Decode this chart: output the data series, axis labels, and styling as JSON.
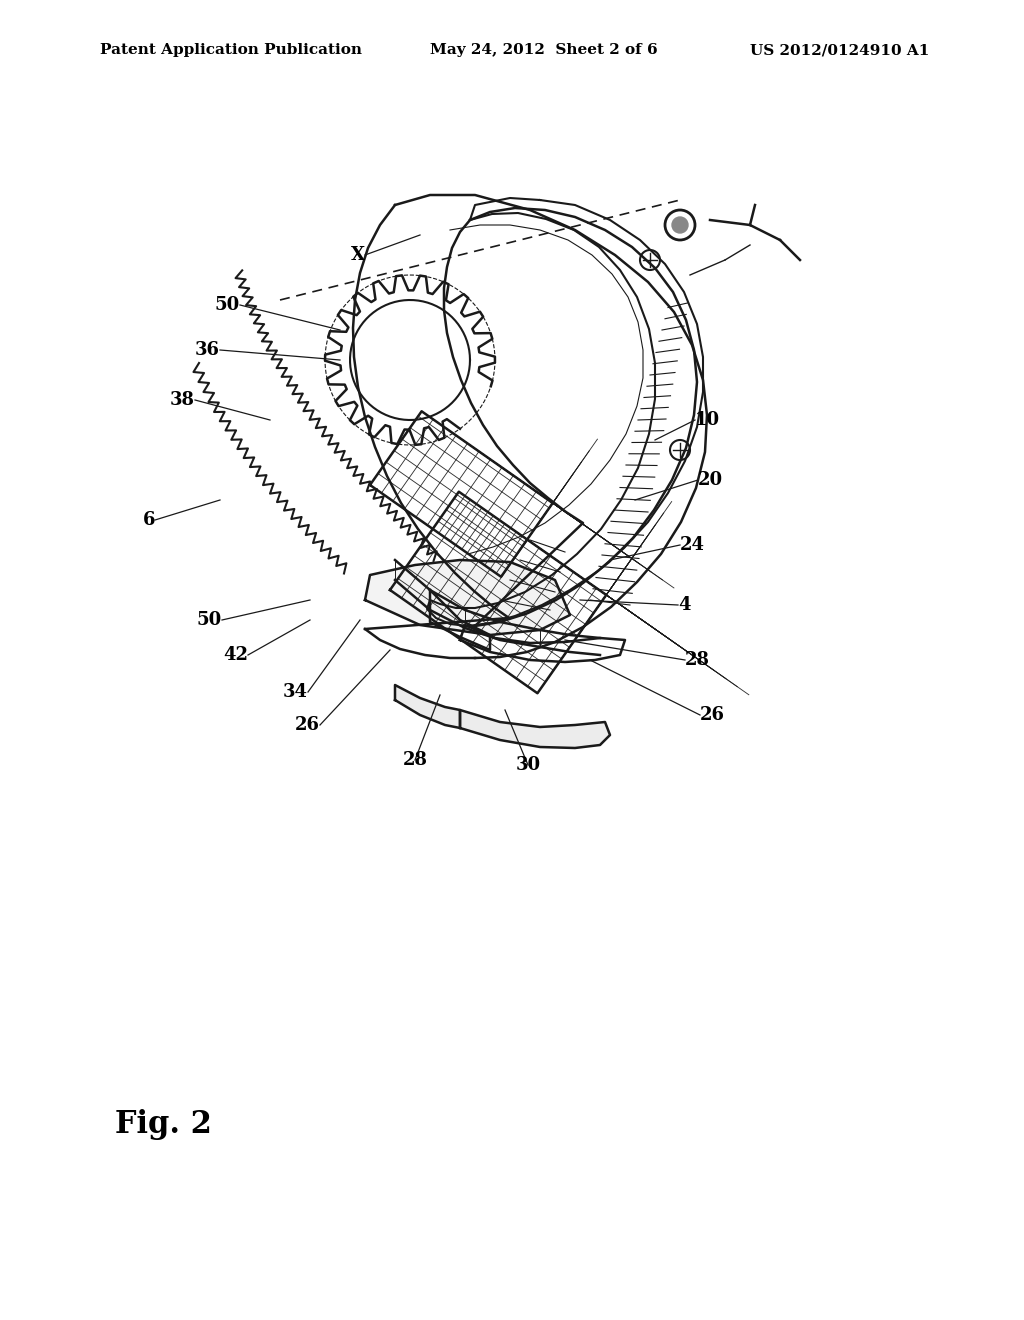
{
  "header_left": "Patent Application Publication",
  "header_mid": "May 24, 2012  Sheet 2 of 6",
  "header_right": "US 2012/0124910 A1",
  "figure_label": "Fig. 2",
  "background_color": "#ffffff",
  "text_color": "#000000",
  "header_fontsize": 11,
  "fig_label_fontsize": 22,
  "lc": "#1a1a1a",
  "lw_main": 1.8,
  "lw_thin": 1.0,
  "labels_info": [
    [
      "X",
      365,
      1065,
      420,
      1085,
      "right"
    ],
    [
      "50",
      240,
      1015,
      340,
      990,
      "right"
    ],
    [
      "36",
      220,
      970,
      340,
      960,
      "right"
    ],
    [
      "38",
      195,
      920,
      270,
      900,
      "right"
    ],
    [
      "6",
      155,
      800,
      220,
      820,
      "right"
    ],
    [
      "50",
      222,
      700,
      310,
      720,
      "right"
    ],
    [
      "42",
      248,
      665,
      310,
      700,
      "right"
    ],
    [
      "34",
      308,
      628,
      360,
      700,
      "right"
    ],
    [
      "26",
      320,
      595,
      390,
      670,
      "right"
    ],
    [
      "28",
      415,
      560,
      440,
      625,
      "center"
    ],
    [
      "30",
      528,
      555,
      505,
      610,
      "center"
    ],
    [
      "10",
      695,
      900,
      655,
      880,
      "left"
    ],
    [
      "20",
      698,
      840,
      635,
      820,
      "left"
    ],
    [
      "24",
      680,
      775,
      610,
      760,
      "left"
    ],
    [
      "4",
      678,
      715,
      580,
      720,
      "left"
    ],
    [
      "28",
      685,
      660,
      565,
      680,
      "left"
    ],
    [
      "26",
      700,
      605,
      590,
      660,
      "left"
    ]
  ]
}
